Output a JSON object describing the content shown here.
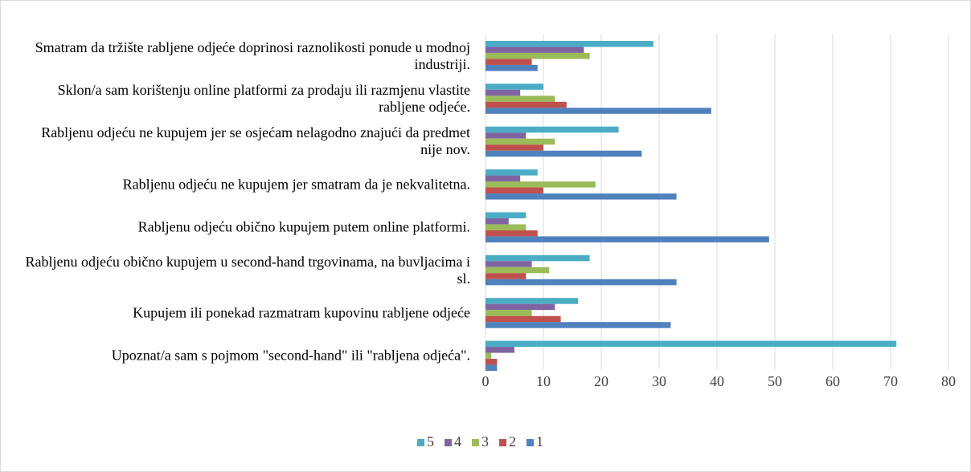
{
  "chart_data": {
    "type": "barh",
    "categories": [
      "Smatram da tržište rabljene odjeće doprinosi raznolikosti ponude u modnoj industriji.",
      "Sklon/a sam korištenju online platformi za prodaju ili razmjenu vlastite rabljene odjeće.",
      "Rabljenu odjeću ne kupujem jer se osjećam nelagodno znajući da predmet nije nov.",
      "Rabljenu odjeću ne kupujem jer smatram da je nekvalitetna.",
      "Rabljenu odjeću obično kupujem putem online platformi.",
      "Rabljenu odjeću obično kupujem u second-hand trgovinama, na buvljacima i sl.",
      "Kupujem ili ponekad razmatram kupovinu rabljene odjeće",
      "Upoznat/a sam s pojmom \"second-hand\" ili \"rabljena odjeća\"."
    ],
    "series": [
      {
        "name": "5",
        "color": "#4bacc6",
        "values": [
          29,
          10,
          23,
          9,
          7,
          18,
          16,
          71
        ]
      },
      {
        "name": "4",
        "color": "#8064a2",
        "values": [
          17,
          6,
          7,
          6,
          4,
          8,
          12,
          5
        ]
      },
      {
        "name": "3",
        "color": "#9bbb59",
        "values": [
          18,
          12,
          12,
          19,
          7,
          11,
          8,
          1
        ]
      },
      {
        "name": "2",
        "color": "#c0504d",
        "values": [
          8,
          14,
          10,
          10,
          9,
          7,
          13,
          2
        ]
      },
      {
        "name": "1",
        "color": "#4f81bd",
        "values": [
          9,
          39,
          27,
          33,
          49,
          33,
          32,
          2
        ]
      }
    ],
    "xlim": [
      0,
      80
    ],
    "xticks": [
      0,
      10,
      20,
      30,
      40,
      50,
      60,
      70,
      80
    ],
    "grid": true,
    "legend": "bottom"
  }
}
